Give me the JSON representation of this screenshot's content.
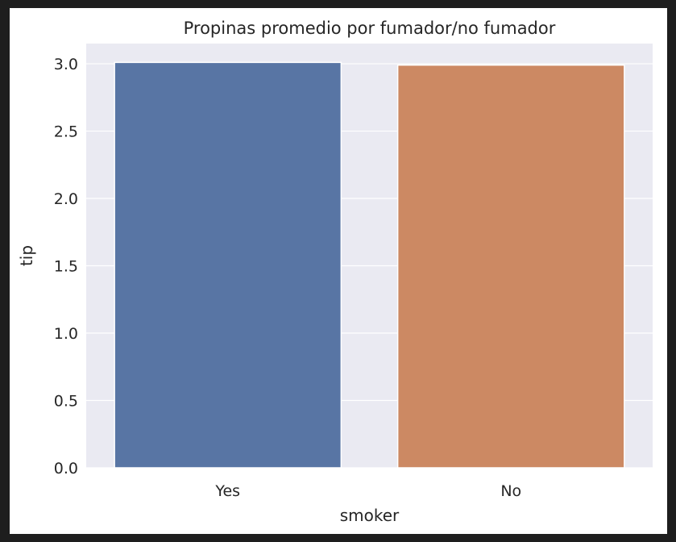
{
  "chart_data": {
    "type": "bar",
    "title": "Propinas promedio por fumador/no fumador",
    "xlabel": "smoker",
    "ylabel": "tip",
    "categories": [
      "Yes",
      "No"
    ],
    "values": [
      3.01,
      2.99
    ],
    "colors": [
      "#5875a4",
      "#cc8963"
    ],
    "ylim": [
      0,
      3.15
    ],
    "yticks": [
      "0.0",
      "0.5",
      "1.0",
      "1.5",
      "2.0",
      "2.5",
      "3.0"
    ],
    "grid": true,
    "background": "#eaeaf2"
  }
}
